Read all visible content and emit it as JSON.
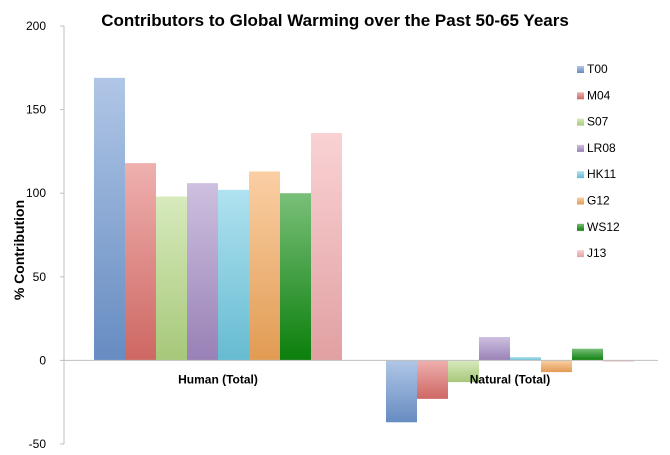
{
  "chart_data": {
    "type": "bar",
    "title": "Contributors to Global Warming over the Past 50-65 Years",
    "xlabel": "",
    "ylabel": "% Contribution",
    "ylim": [
      -50,
      200
    ],
    "yticks": [
      -50,
      0,
      50,
      100,
      150,
      200
    ],
    "grid": false,
    "legend_position": "right",
    "categories": [
      "Human (Total)",
      "Natural (Total)"
    ],
    "series": [
      {
        "name": "T00",
        "values": [
          169,
          -37
        ],
        "color": "#6f98d2"
      },
      {
        "name": "M04",
        "values": [
          118,
          -23
        ],
        "color": "#e0706c"
      },
      {
        "name": "S07",
        "values": [
          98,
          -13
        ],
        "color": "#b6d985"
      },
      {
        "name": "LR08",
        "values": [
          106,
          14
        ],
        "color": "#a58cc6"
      },
      {
        "name": "HK11",
        "values": [
          102,
          2
        ],
        "color": "#6fcbe3"
      },
      {
        "name": "G12",
        "values": [
          113,
          -7
        ],
        "color": "#f5a85a"
      },
      {
        "name": "WS12",
        "values": [
          100,
          7
        ],
        "color": "#0c8a0c"
      },
      {
        "name": "J13",
        "values": [
          136,
          0
        ],
        "color": "#f5aeb0"
      }
    ]
  }
}
